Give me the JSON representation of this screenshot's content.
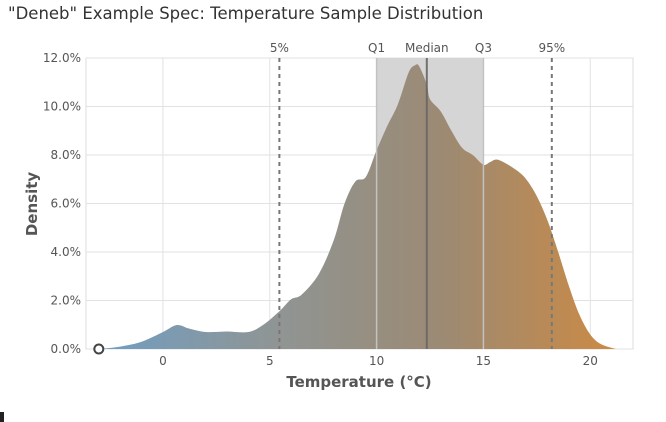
{
  "chart_data": {
    "type": "area",
    "title": "\"Deneb\" Example Spec: Temperature Sample Distribution",
    "xlabel": "Temperature (°C)",
    "ylabel": "Density",
    "xlim": [
      -3.6,
      22
    ],
    "ylim": [
      0,
      0.12
    ],
    "x_ticks": [
      0,
      5,
      10,
      15,
      20
    ],
    "x_tick_labels": [
      "0",
      "5",
      "10",
      "15",
      "20"
    ],
    "y_ticks": [
      0,
      0.02,
      0.04,
      0.06,
      0.08,
      0.1,
      0.12
    ],
    "y_tick_labels": [
      "0.0%",
      "2.0%",
      "4.0%",
      "6.0%",
      "8.0%",
      "10.0%",
      "12.0%"
    ],
    "grid": true,
    "gradient_colors": [
      "#6f9ec3",
      "#8f9595",
      "#9c8a73",
      "#cc8a44"
    ],
    "interquartile_band": {
      "from": 10.0,
      "to": 15.0,
      "color": "#d3d3d3"
    },
    "reference_lines": [
      {
        "label": "5%",
        "x": 5.45,
        "style": "dashed"
      },
      {
        "label": "Q1",
        "x": 10.0,
        "style": "solid"
      },
      {
        "label": "Median",
        "x": 12.35,
        "style": "solid"
      },
      {
        "label": "Q3",
        "x": 15.0,
        "style": "solid"
      },
      {
        "label": "95%",
        "x": 18.2,
        "style": "dashed"
      }
    ],
    "outlier_points": [
      {
        "x": -3.0,
        "y": 0.0
      }
    ],
    "density": {
      "x": [
        -3.0,
        -2.0,
        -1.0,
        0.0,
        0.5,
        0.8,
        1.2,
        2.0,
        3.0,
        4.0,
        4.7,
        5.5,
        6.0,
        6.5,
        7.3,
        8.0,
        8.5,
        9.0,
        9.5,
        10.0,
        10.5,
        11.0,
        11.5,
        11.8,
        12.0,
        12.35,
        12.5,
        13.0,
        13.5,
        14.0,
        14.5,
        15.0,
        15.3,
        15.7,
        16.5,
        17.0,
        17.5,
        18.0,
        18.5,
        19.0,
        19.5,
        20.0,
        20.5,
        21.2
      ],
      "y": [
        0.0,
        0.001,
        0.003,
        0.007,
        0.0095,
        0.0098,
        0.0085,
        0.007,
        0.0072,
        0.007,
        0.01,
        0.016,
        0.0205,
        0.0225,
        0.031,
        0.045,
        0.06,
        0.069,
        0.071,
        0.082,
        0.092,
        0.101,
        0.114,
        0.117,
        0.1165,
        0.109,
        0.103,
        0.098,
        0.09,
        0.083,
        0.08,
        0.076,
        0.077,
        0.078,
        0.074,
        0.07,
        0.063,
        0.053,
        0.04,
        0.026,
        0.014,
        0.006,
        0.002,
        0.0
      ]
    }
  }
}
